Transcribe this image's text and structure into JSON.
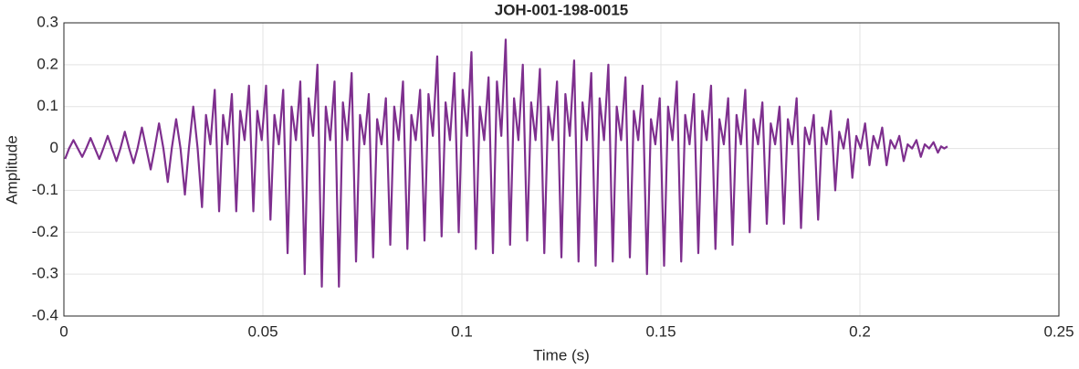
{
  "chart_data": {
    "type": "line",
    "title": "JOH-001-198-0015",
    "x_label": "Time (s)",
    "y_label": "Amplitude",
    "color": "#7e2f8e",
    "grid": true,
    "xlim": [
      0,
      0.25
    ],
    "xticks": [
      0,
      0.05,
      0.1,
      0.15,
      0.2,
      0.25
    ],
    "ylim": [
      -0.4,
      0.3
    ],
    "yticks": [
      -0.4,
      -0.3,
      -0.2,
      -0.1,
      0,
      0.1,
      0.2,
      0.3
    ],
    "x": [
      0.0003,
      0.0013,
      0.0024,
      0.0035,
      0.0046,
      0.0056,
      0.0067,
      0.0078,
      0.0089,
      0.0099,
      0.011,
      0.0121,
      0.0132,
      0.0142,
      0.0153,
      0.0164,
      0.0175,
      0.0185,
      0.0196,
      0.0207,
      0.0218,
      0.0228,
      0.0239,
      0.025,
      0.0261,
      0.0271,
      0.0282,
      0.0293,
      0.0304,
      0.0314,
      0.0325,
      0.0336,
      0.0347,
      0.0357,
      0.0368,
      0.0379,
      0.039,
      0.04,
      0.0411,
      0.0422,
      0.0433,
      0.0443,
      0.0454,
      0.0465,
      0.0476,
      0.0486,
      0.0497,
      0.0508,
      0.0519,
      0.0529,
      0.054,
      0.0551,
      0.0562,
      0.0572,
      0.0583,
      0.0594,
      0.0605,
      0.0615,
      0.0626,
      0.0637,
      0.0648,
      0.0658,
      0.0669,
      0.068,
      0.0691,
      0.0701,
      0.0712,
      0.0723,
      0.0734,
      0.0744,
      0.0755,
      0.0766,
      0.0777,
      0.0787,
      0.0798,
      0.0809,
      0.082,
      0.083,
      0.0841,
      0.0852,
      0.0863,
      0.0873,
      0.0884,
      0.0895,
      0.0906,
      0.0916,
      0.0927,
      0.0938,
      0.0949,
      0.0959,
      0.097,
      0.0981,
      0.0992,
      0.1002,
      0.1013,
      0.1024,
      0.1035,
      0.1045,
      0.1056,
      0.1067,
      0.1078,
      0.1088,
      0.1099,
      0.111,
      0.1121,
      0.1131,
      0.1142,
      0.1153,
      0.1164,
      0.1174,
      0.1185,
      0.1196,
      0.1207,
      0.1217,
      0.1228,
      0.1239,
      0.125,
      0.126,
      0.1271,
      0.1282,
      0.1293,
      0.1303,
      0.1314,
      0.1325,
      0.1336,
      0.1346,
      0.1357,
      0.1368,
      0.1379,
      0.1389,
      0.14,
      0.1411,
      0.1422,
      0.1432,
      0.1443,
      0.1454,
      0.1465,
      0.1475,
      0.1486,
      0.1497,
      0.1508,
      0.1518,
      0.1529,
      0.154,
      0.1551,
      0.1561,
      0.1572,
      0.1583,
      0.1594,
      0.1604,
      0.1615,
      0.1626,
      0.1637,
      0.1647,
      0.1658,
      0.1669,
      0.168,
      0.169,
      0.1701,
      0.1712,
      0.1723,
      0.1733,
      0.1744,
      0.1755,
      0.1766,
      0.1776,
      0.1787,
      0.1798,
      0.1809,
      0.1819,
      0.183,
      0.1841,
      0.1852,
      0.1862,
      0.1873,
      0.1884,
      0.1895,
      0.1905,
      0.1916,
      0.1927,
      0.1938,
      0.1948,
      0.1959,
      0.197,
      0.1981,
      0.1991,
      0.2002,
      0.2013,
      0.2024,
      0.2034,
      0.2045,
      0.2056,
      0.2067,
      0.2077,
      0.2088,
      0.2099,
      0.211,
      0.212,
      0.2131,
      0.2142,
      0.2153,
      0.2163,
      0.2174,
      0.2185,
      0.2196,
      0.2204,
      0.2212,
      0.222
    ],
    "values": [
      -0.025,
      0,
      0.02,
      0,
      -0.02,
      0,
      0.025,
      0,
      -0.025,
      0,
      0.03,
      0,
      -0.03,
      0,
      0.04,
      0,
      -0.035,
      0,
      0.05,
      0,
      -0.05,
      0,
      0.06,
      0,
      -0.08,
      0,
      0.07,
      0,
      -0.11,
      0,
      0.1,
      0,
      -0.14,
      0.08,
      0.01,
      0.14,
      -0.15,
      0.08,
      0.01,
      0.13,
      -0.15,
      0.09,
      0.02,
      0.15,
      -0.15,
      0.09,
      0.02,
      0.15,
      -0.17,
      0.08,
      0.01,
      0.14,
      -0.25,
      0.1,
      0.02,
      0.16,
      -0.3,
      0.12,
      0.03,
      0.2,
      -0.33,
      0.1,
      0.02,
      0.16,
      -0.33,
      0.11,
      0.02,
      0.18,
      -0.27,
      0.08,
      0.01,
      0.13,
      -0.26,
      0.07,
      0.01,
      0.12,
      -0.23,
      0.1,
      0.02,
      0.16,
      -0.24,
      0.08,
      0.02,
      0.14,
      -0.22,
      0.13,
      0.03,
      0.22,
      -0.21,
      0.11,
      0.02,
      0.18,
      -0.2,
      0.14,
      0.03,
      0.23,
      -0.24,
      0.1,
      0.02,
      0.17,
      -0.25,
      0.16,
      0.03,
      0.26,
      -0.23,
      0.12,
      0.02,
      0.2,
      -0.22,
      0.11,
      0.02,
      0.19,
      -0.25,
      0.1,
      0.02,
      0.16,
      -0.26,
      0.13,
      0.03,
      0.21,
      -0.27,
      0.11,
      0.02,
      0.18,
      -0.28,
      0.12,
      0.02,
      0.2,
      -0.27,
      0.1,
      0.02,
      0.17,
      -0.26,
      0.09,
      0.02,
      0.15,
      -0.3,
      0.07,
      0.01,
      0.12,
      -0.28,
      0.1,
      0.02,
      0.16,
      -0.27,
      0.08,
      0.01,
      0.13,
      -0.25,
      0.09,
      0.02,
      0.15,
      -0.24,
      0.07,
      0.01,
      0.12,
      -0.23,
      0.08,
      0.01,
      0.14,
      -0.2,
      0.07,
      0.01,
      0.11,
      -0.18,
      0.06,
      0.01,
      0.1,
      -0.18,
      0.07,
      0.01,
      0.12,
      -0.19,
      0.05,
      0.01,
      0.08,
      -0.17,
      0.05,
      0.01,
      0.09,
      -0.1,
      0.04,
      0,
      0.07,
      -0.07,
      0.03,
      0,
      0.06,
      -0.04,
      0.03,
      0,
      0.05,
      -0.04,
      0.02,
      0,
      0.03,
      -0.03,
      0.01,
      0,
      0.02,
      -0.02,
      0.01,
      0,
      0.015,
      -0.01,
      0.005,
      0,
      0.005
    ]
  }
}
